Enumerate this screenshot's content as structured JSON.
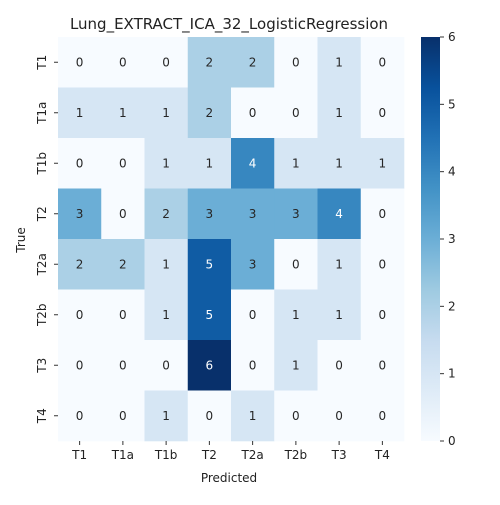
{
  "chart_data": {
    "type": "heatmap",
    "title": "Lung_EXTRACT_ICA_32_LogisticRegression",
    "xlabel": "Predicted",
    "ylabel": "True",
    "x_categories": [
      "T1",
      "T1a",
      "T1b",
      "T2",
      "T2a",
      "T2b",
      "T3",
      "T4"
    ],
    "y_categories": [
      "T1",
      "T1a",
      "T1b",
      "T2",
      "T2a",
      "T2b",
      "T3",
      "T4"
    ],
    "values": [
      [
        0,
        0,
        0,
        2,
        2,
        0,
        1,
        0
      ],
      [
        1,
        1,
        1,
        2,
        0,
        0,
        1,
        0
      ],
      [
        0,
        0,
        1,
        1,
        4,
        1,
        1,
        1
      ],
      [
        3,
        0,
        2,
        3,
        3,
        3,
        4,
        0
      ],
      [
        2,
        2,
        1,
        5,
        3,
        0,
        1,
        0
      ],
      [
        0,
        0,
        1,
        5,
        0,
        1,
        1,
        0
      ],
      [
        0,
        0,
        0,
        6,
        0,
        1,
        0,
        0
      ],
      [
        0,
        0,
        1,
        0,
        1,
        0,
        0,
        0
      ]
    ],
    "colorbar": {
      "min": 0,
      "max": 6,
      "ticks": [
        0,
        1,
        2,
        3,
        4,
        5,
        6
      ],
      "colormap": "Blues",
      "low_color": "#f7fbff",
      "high_color": "#08306b"
    }
  }
}
